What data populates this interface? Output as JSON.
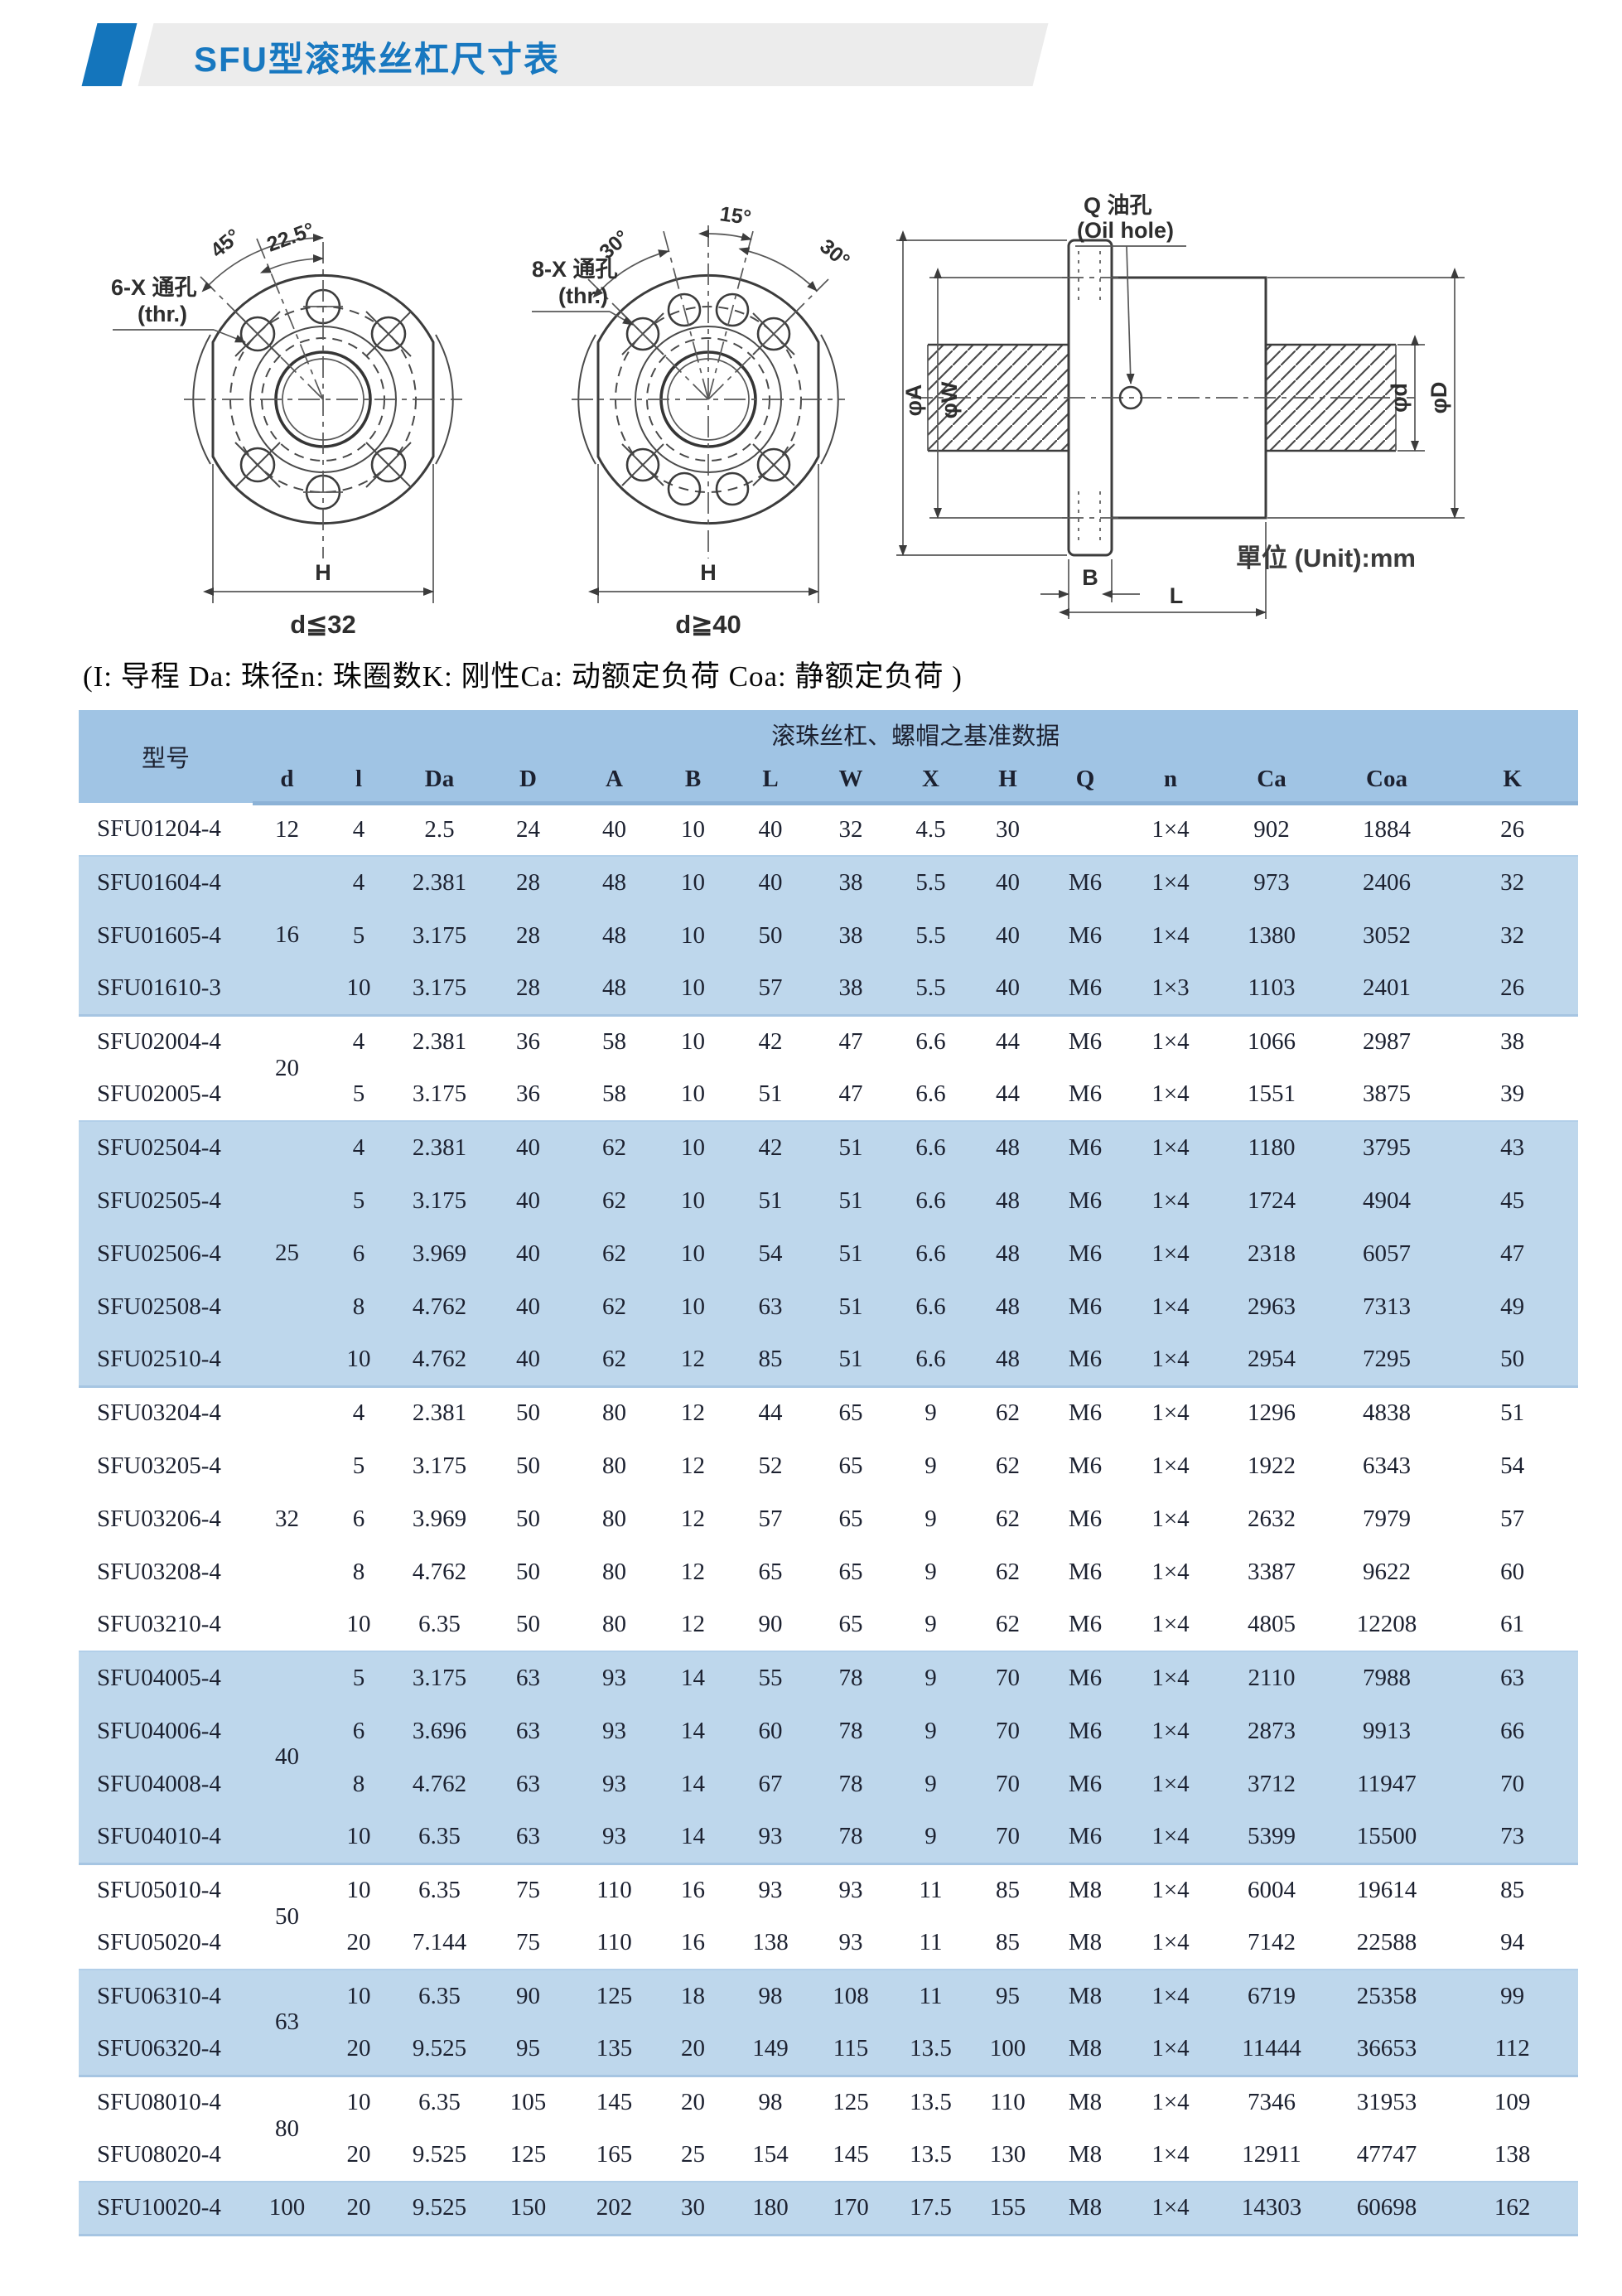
{
  "page": {
    "title": "SFU型滚珠丝杠尺寸表",
    "legend": "(I: 导程 Da: 珠径n: 珠圈数K: 刚性Ca: 动额定负荷 Coa: 静额定负荷 )",
    "unit_note": "單位 (Unit):mm"
  },
  "colors": {
    "accent_blue": "#1475bc",
    "title_blue": "#1878c0",
    "header_bg": "#a0c4e4",
    "band_bg": "#bed7ec",
    "banner_gray": "#ececec"
  },
  "drawings": {
    "fig1": {
      "hole_label": "6-X 通孔",
      "thr": "(thr.)",
      "angle1": "45°",
      "angle2": "22.5°",
      "dim_h": "H",
      "dim_d": "d≦32"
    },
    "fig2": {
      "hole_label": "8-X 通孔",
      "thr": "(thr.)",
      "angle1": "30°",
      "angle2": "15°",
      "angle3": "30°",
      "dim_h": "H",
      "dim_d": "d≧40"
    },
    "fig3": {
      "oil_label": "Q 油孔",
      "oil_label_en": "(Oil hole)",
      "dim_a": "φA",
      "dim_w": "φW",
      "dim_d_small": "φd",
      "dim_d_big": "φD",
      "dim_b": "B",
      "dim_l": "L"
    }
  },
  "table": {
    "header_model": "型号",
    "header_data": "滚珠丝杠、螺帽之基准数据",
    "columns": [
      "d",
      "l",
      "Da",
      "D",
      "A",
      "B",
      "L",
      "W",
      "X",
      "H",
      "Q",
      "n",
      "Ca",
      "Coa",
      "K"
    ],
    "groups": [
      {
        "d": "12",
        "shade": false,
        "rows": [
          {
            "model": "SFU01204-4",
            "values": [
              "4",
              "2.5",
              "24",
              "40",
              "10",
              "40",
              "32",
              "4.5",
              "30",
              "",
              "1×4",
              "902",
              "1884",
              "26"
            ]
          }
        ]
      },
      {
        "d": "16",
        "shade": true,
        "rows": [
          {
            "model": "SFU01604-4",
            "values": [
              "4",
              "2.381",
              "28",
              "48",
              "10",
              "40",
              "38",
              "5.5",
              "40",
              "M6",
              "1×4",
              "973",
              "2406",
              "32"
            ]
          },
          {
            "model": "SFU01605-4",
            "values": [
              "5",
              "3.175",
              "28",
              "48",
              "10",
              "50",
              "38",
              "5.5",
              "40",
              "M6",
              "1×4",
              "1380",
              "3052",
              "32"
            ]
          },
          {
            "model": "SFU01610-3",
            "values": [
              "10",
              "3.175",
              "28",
              "48",
              "10",
              "57",
              "38",
              "5.5",
              "40",
              "M6",
              "1×3",
              "1103",
              "2401",
              "26"
            ]
          }
        ]
      },
      {
        "d": "20",
        "shade": false,
        "rows": [
          {
            "model": "SFU02004-4",
            "values": [
              "4",
              "2.381",
              "36",
              "58",
              "10",
              "42",
              "47",
              "6.6",
              "44",
              "M6",
              "1×4",
              "1066",
              "2987",
              "38"
            ]
          },
          {
            "model": "SFU02005-4",
            "values": [
              "5",
              "3.175",
              "36",
              "58",
              "10",
              "51",
              "47",
              "6.6",
              "44",
              "M6",
              "1×4",
              "1551",
              "3875",
              "39"
            ]
          }
        ]
      },
      {
        "d": "25",
        "shade": true,
        "rows": [
          {
            "model": "SFU02504-4",
            "values": [
              "4",
              "2.381",
              "40",
              "62",
              "10",
              "42",
              "51",
              "6.6",
              "48",
              "M6",
              "1×4",
              "1180",
              "3795",
              "43"
            ]
          },
          {
            "model": "SFU02505-4",
            "values": [
              "5",
              "3.175",
              "40",
              "62",
              "10",
              "51",
              "51",
              "6.6",
              "48",
              "M6",
              "1×4",
              "1724",
              "4904",
              "45"
            ]
          },
          {
            "model": "SFU02506-4",
            "values": [
              "6",
              "3.969",
              "40",
              "62",
              "10",
              "54",
              "51",
              "6.6",
              "48",
              "M6",
              "1×4",
              "2318",
              "6057",
              "47"
            ]
          },
          {
            "model": "SFU02508-4",
            "values": [
              "8",
              "4.762",
              "40",
              "62",
              "10",
              "63",
              "51",
              "6.6",
              "48",
              "M6",
              "1×4",
              "2963",
              "7313",
              "49"
            ]
          },
          {
            "model": "SFU02510-4",
            "values": [
              "10",
              "4.762",
              "40",
              "62",
              "12",
              "85",
              "51",
              "6.6",
              "48",
              "M6",
              "1×4",
              "2954",
              "7295",
              "50"
            ]
          }
        ]
      },
      {
        "d": "32",
        "shade": false,
        "rows": [
          {
            "model": "SFU03204-4",
            "values": [
              "4",
              "2.381",
              "50",
              "80",
              "12",
              "44",
              "65",
              "9",
              "62",
              "M6",
              "1×4",
              "1296",
              "4838",
              "51"
            ]
          },
          {
            "model": "SFU03205-4",
            "values": [
              "5",
              "3.175",
              "50",
              "80",
              "12",
              "52",
              "65",
              "9",
              "62",
              "M6",
              "1×4",
              "1922",
              "6343",
              "54"
            ]
          },
          {
            "model": "SFU03206-4",
            "values": [
              "6",
              "3.969",
              "50",
              "80",
              "12",
              "57",
              "65",
              "9",
              "62",
              "M6",
              "1×4",
              "2632",
              "7979",
              "57"
            ]
          },
          {
            "model": "SFU03208-4",
            "values": [
              "8",
              "4.762",
              "50",
              "80",
              "12",
              "65",
              "65",
              "9",
              "62",
              "M6",
              "1×4",
              "3387",
              "9622",
              "60"
            ]
          },
          {
            "model": "SFU03210-4",
            "values": [
              "10",
              "6.35",
              "50",
              "80",
              "12",
              "90",
              "65",
              "9",
              "62",
              "M6",
              "1×4",
              "4805",
              "12208",
              "61"
            ]
          }
        ]
      },
      {
        "d": "40",
        "shade": true,
        "rows": [
          {
            "model": "SFU04005-4",
            "values": [
              "5",
              "3.175",
              "63",
              "93",
              "14",
              "55",
              "78",
              "9",
              "70",
              "M6",
              "1×4",
              "2110",
              "7988",
              "63"
            ]
          },
          {
            "model": "SFU04006-4",
            "values": [
              "6",
              "3.696",
              "63",
              "93",
              "14",
              "60",
              "78",
              "9",
              "70",
              "M6",
              "1×4",
              "2873",
              "9913",
              "66"
            ]
          },
          {
            "model": "SFU04008-4",
            "values": [
              "8",
              "4.762",
              "63",
              "93",
              "14",
              "67",
              "78",
              "9",
              "70",
              "M6",
              "1×4",
              "3712",
              "11947",
              "70"
            ]
          },
          {
            "model": "SFU04010-4",
            "values": [
              "10",
              "6.35",
              "63",
              "93",
              "14",
              "93",
              "78",
              "9",
              "70",
              "M6",
              "1×4",
              "5399",
              "15500",
              "73"
            ]
          }
        ]
      },
      {
        "d": "50",
        "shade": false,
        "rows": [
          {
            "model": "SFU05010-4",
            "values": [
              "10",
              "6.35",
              "75",
              "110",
              "16",
              "93",
              "93",
              "11",
              "85",
              "M8",
              "1×4",
              "6004",
              "19614",
              "85"
            ]
          },
          {
            "model": "SFU05020-4",
            "values": [
              "20",
              "7.144",
              "75",
              "110",
              "16",
              "138",
              "93",
              "11",
              "85",
              "M8",
              "1×4",
              "7142",
              "22588",
              "94"
            ]
          }
        ]
      },
      {
        "d": "63",
        "shade": true,
        "rows": [
          {
            "model": "SFU06310-4",
            "values": [
              "10",
              "6.35",
              "90",
              "125",
              "18",
              "98",
              "108",
              "11",
              "95",
              "M8",
              "1×4",
              "6719",
              "25358",
              "99"
            ]
          },
          {
            "model": "SFU06320-4",
            "values": [
              "20",
              "9.525",
              "95",
              "135",
              "20",
              "149",
              "115",
              "13.5",
              "100",
              "M8",
              "1×4",
              "11444",
              "36653",
              "112"
            ]
          }
        ]
      },
      {
        "d": "80",
        "shade": false,
        "rows": [
          {
            "model": "SFU08010-4",
            "values": [
              "10",
              "6.35",
              "105",
              "145",
              "20",
              "98",
              "125",
              "13.5",
              "110",
              "M8",
              "1×4",
              "7346",
              "31953",
              "109"
            ]
          },
          {
            "model": "SFU08020-4",
            "values": [
              "20",
              "9.525",
              "125",
              "165",
              "25",
              "154",
              "145",
              "13.5",
              "130",
              "M8",
              "1×4",
              "12911",
              "47747",
              "138"
            ]
          }
        ]
      },
      {
        "d": "100",
        "shade": true,
        "rows": [
          {
            "model": "SFU10020-4",
            "values": [
              "20",
              "9.525",
              "150",
              "202",
              "30",
              "180",
              "170",
              "17.5",
              "155",
              "M8",
              "1×4",
              "14303",
              "60698",
              "162"
            ]
          }
        ]
      }
    ]
  }
}
